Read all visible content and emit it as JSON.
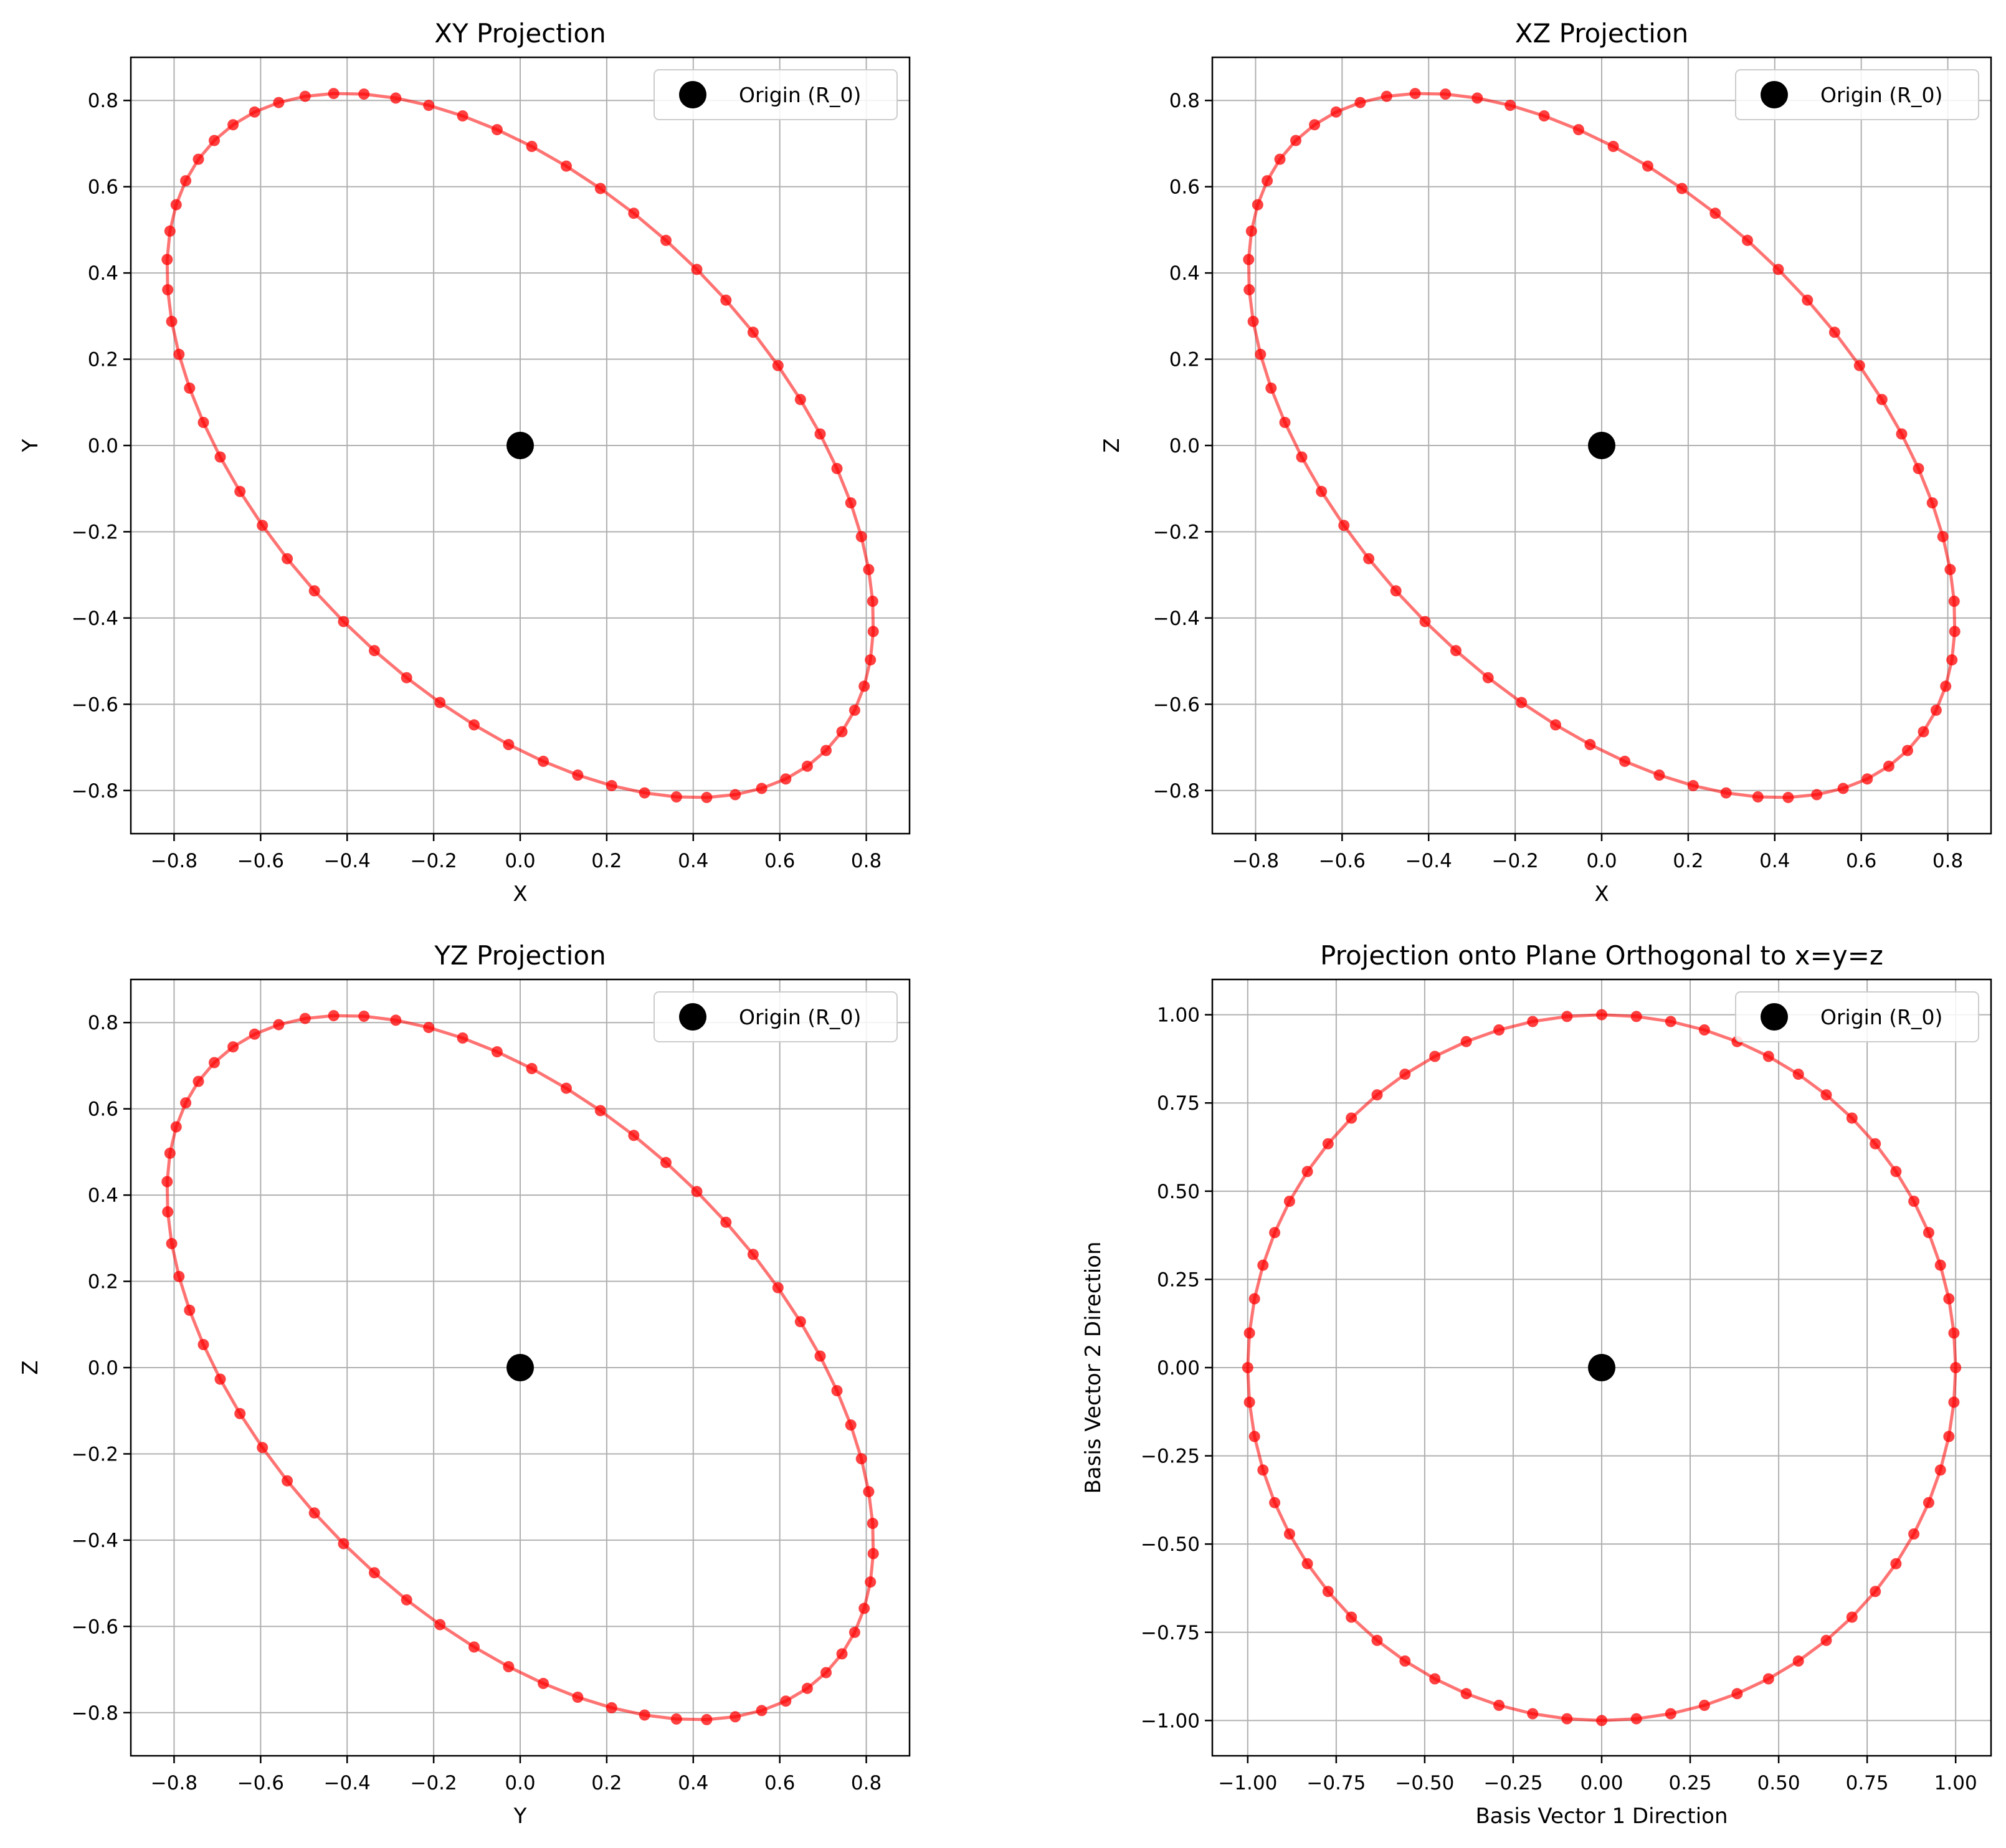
{
  "colors": {
    "curve": "#ff0000",
    "origin": "#000000",
    "grid": "#b0b0b0"
  },
  "chart_data": [
    {
      "type": "line",
      "title": "XY Projection",
      "xlabel": "X",
      "ylabel": "Y",
      "xlim": [
        -0.9,
        0.9
      ],
      "ylim": [
        -0.9,
        0.9
      ],
      "xticks": [
        -0.8,
        -0.6,
        -0.4,
        -0.2,
        0.0,
        0.2,
        0.4,
        0.6,
        0.8
      ],
      "yticks": [
        -0.8,
        -0.6,
        -0.4,
        -0.2,
        0.0,
        0.2,
        0.4,
        0.6,
        0.8
      ],
      "xtick_labels": [
        "−0.8",
        "−0.6",
        "−0.4",
        "−0.2",
        "0.0",
        "0.2",
        "0.4",
        "0.6",
        "0.8"
      ],
      "ytick_labels": [
        "−0.8",
        "−0.6",
        "−0.4",
        "−0.2",
        "0.0",
        "0.2",
        "0.4",
        "0.6",
        "0.8"
      ],
      "grid": true,
      "legend": {
        "position": "upper right",
        "entries": [
          "Origin (R_0)"
        ]
      },
      "origin_point": [
        0,
        0
      ],
      "curve": {
        "kind": "ellipse",
        "u": [
          0.707107,
          -0.707107
        ],
        "v": [
          0.408248,
          0.408248
        ],
        "points": 64
      }
    },
    {
      "type": "line",
      "title": "XZ Projection",
      "xlabel": "X",
      "ylabel": "Z",
      "xlim": [
        -0.9,
        0.9
      ],
      "ylim": [
        -0.9,
        0.9
      ],
      "xticks": [
        -0.8,
        -0.6,
        -0.4,
        -0.2,
        0.0,
        0.2,
        0.4,
        0.6,
        0.8
      ],
      "yticks": [
        -0.8,
        -0.6,
        -0.4,
        -0.2,
        0.0,
        0.2,
        0.4,
        0.6,
        0.8
      ],
      "xtick_labels": [
        "−0.8",
        "−0.6",
        "−0.4",
        "−0.2",
        "0.0",
        "0.2",
        "0.4",
        "0.6",
        "0.8"
      ],
      "ytick_labels": [
        "−0.8",
        "−0.6",
        "−0.4",
        "−0.2",
        "0.0",
        "0.2",
        "0.4",
        "0.6",
        "0.8"
      ],
      "grid": true,
      "legend": {
        "position": "upper right",
        "entries": [
          "Origin (R_0)"
        ]
      },
      "origin_point": [
        0,
        0
      ],
      "curve": {
        "kind": "ellipse",
        "u": [
          0.707107,
          -0.707107
        ],
        "v": [
          0.408248,
          0.408248
        ],
        "points": 64
      }
    },
    {
      "type": "line",
      "title": "YZ Projection",
      "xlabel": "Y",
      "ylabel": "Z",
      "xlim": [
        -0.9,
        0.9
      ],
      "ylim": [
        -0.9,
        0.9
      ],
      "xticks": [
        -0.8,
        -0.6,
        -0.4,
        -0.2,
        0.0,
        0.2,
        0.4,
        0.6,
        0.8
      ],
      "yticks": [
        -0.8,
        -0.6,
        -0.4,
        -0.2,
        0.0,
        0.2,
        0.4,
        0.6,
        0.8
      ],
      "xtick_labels": [
        "−0.8",
        "−0.6",
        "−0.4",
        "−0.2",
        "0.0",
        "0.2",
        "0.4",
        "0.6",
        "0.8"
      ],
      "ytick_labels": [
        "−0.8",
        "−0.6",
        "−0.4",
        "−0.2",
        "0.0",
        "0.2",
        "0.4",
        "0.6",
        "0.8"
      ],
      "grid": true,
      "legend": {
        "position": "upper right",
        "entries": [
          "Origin (R_0)"
        ]
      },
      "origin_point": [
        0,
        0
      ],
      "curve": {
        "kind": "ellipse",
        "u": [
          0.707107,
          -0.707107
        ],
        "v": [
          0.408248,
          0.408248
        ],
        "points": 64
      }
    },
    {
      "type": "line",
      "title": "Projection onto Plane Orthogonal to x=y=z",
      "xlabel": "Basis Vector 1 Direction",
      "ylabel": "Basis Vector 2 Direction",
      "xlim": [
        -1.1,
        1.1
      ],
      "ylim": [
        -1.1,
        1.1
      ],
      "xticks": [
        -1.0,
        -0.75,
        -0.5,
        -0.25,
        0.0,
        0.25,
        0.5,
        0.75,
        1.0
      ],
      "yticks": [
        -1.0,
        -0.75,
        -0.5,
        -0.25,
        0.0,
        0.25,
        0.5,
        0.75,
        1.0
      ],
      "xtick_labels": [
        "−1.00",
        "−0.75",
        "−0.50",
        "−0.25",
        "0.00",
        "0.25",
        "0.50",
        "0.75",
        "1.00"
      ],
      "ytick_labels": [
        "−1.00",
        "−0.75",
        "−0.50",
        "−0.25",
        "0.00",
        "0.25",
        "0.50",
        "0.75",
        "1.00"
      ],
      "grid": true,
      "legend": {
        "position": "upper right",
        "entries": [
          "Origin (R_0)"
        ]
      },
      "origin_point": [
        0,
        0
      ],
      "curve": {
        "kind": "ellipse",
        "u": [
          1.0,
          0.0
        ],
        "v": [
          0.0,
          1.0
        ],
        "points": 64
      }
    }
  ]
}
